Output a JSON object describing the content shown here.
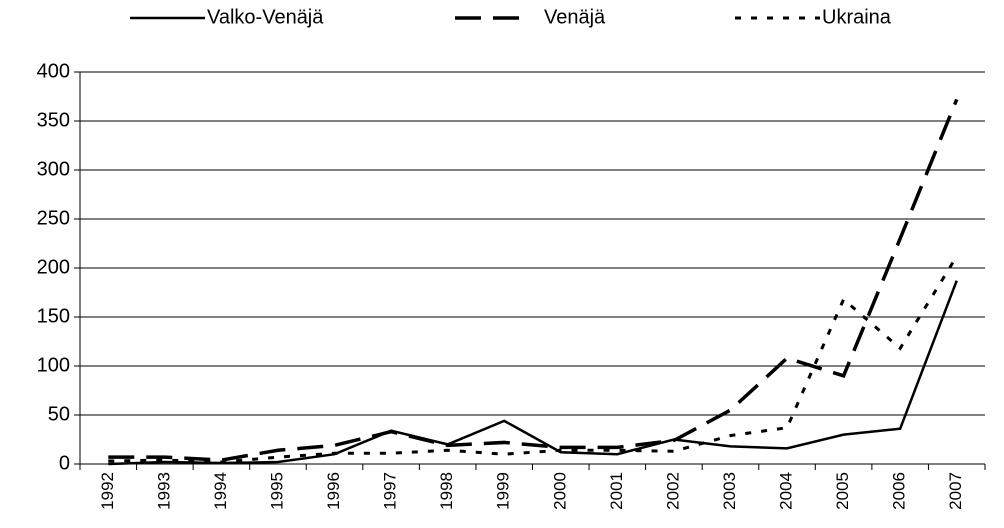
{
  "chart_data": {
    "type": "line",
    "categories": [
      "1992",
      "1993",
      "1994",
      "1995",
      "1996",
      "1997",
      "1998",
      "1999",
      "2000",
      "2001",
      "2002",
      "2003",
      "2004",
      "2005",
      "2006",
      "2007"
    ],
    "series": [
      {
        "name": "Valko-Venäjä",
        "color": "#000000",
        "line_style": "solid",
        "values": [
          0,
          2,
          1,
          2,
          10,
          34,
          20,
          44,
          12,
          10,
          25,
          18,
          16,
          30,
          36,
          187
        ]
      },
      {
        "name": "Venäjä",
        "color": "#000000",
        "line_style": "dashed",
        "values": [
          7,
          7,
          4,
          14,
          19,
          33,
          19,
          22,
          17,
          17,
          24,
          55,
          108,
          90,
          230,
          372
        ]
      },
      {
        "name": "Ukraina",
        "color": "#000000",
        "line_style": "dotted",
        "values": [
          3,
          4,
          2,
          7,
          11,
          11,
          14,
          10,
          14,
          14,
          13,
          29,
          37,
          168,
          118,
          212
        ]
      }
    ],
    "ylim": [
      0,
      400
    ],
    "yticks": [
      0,
      50,
      100,
      150,
      200,
      250,
      300,
      350,
      400
    ],
    "grid": true,
    "legend": "top"
  }
}
